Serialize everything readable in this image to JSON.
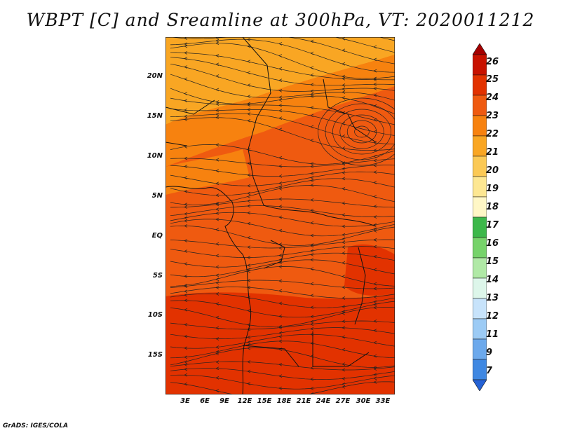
{
  "title": "WBPT [C] and Sreamline at 300hPa, VT: 2020011212",
  "credit": "GrADS: IGES/COLA",
  "map": {
    "lat_labels": [
      "20N",
      "15N",
      "10N",
      "5N",
      "EQ",
      "5S",
      "10S",
      "15S"
    ],
    "lon_labels": [
      "3E",
      "6E",
      "9E",
      "12E",
      "15E",
      "18E",
      "21E",
      "24E",
      "27E",
      "30E",
      "33E"
    ]
  },
  "colorbar": {
    "labels": [
      "26",
      "25",
      "24",
      "23",
      "22",
      "21",
      "20",
      "19",
      "18",
      "17",
      "16",
      "15",
      "14",
      "13",
      "12",
      "11",
      "9",
      "7"
    ],
    "colors": [
      "#a50000",
      "#c81200",
      "#e23200",
      "#ef5a10",
      "#f7820f",
      "#f9a623",
      "#fbc955",
      "#fde792",
      "#fff7c6",
      "#3cb84a",
      "#76d36a",
      "#b0e9a6",
      "#ddf6ea",
      "#c7e3fb",
      "#9ccbf5",
      "#6ca9ec",
      "#3f88e2",
      "#2562d5"
    ]
  },
  "field_colors": {
    "c21": "#f9a623",
    "c22": "#f7820f",
    "c23": "#ef5a10",
    "c24": "#e23200",
    "land_line": "#111111"
  }
}
